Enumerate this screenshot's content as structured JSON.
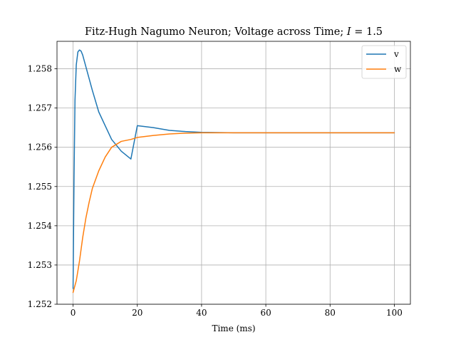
{
  "chart_data": {
    "type": "line",
    "title": "Fitz-Hugh Nagumo Neuron; Voltage across Time; ",
    "title_var": "I",
    "title_rest": " = 1.5",
    "xlabel": "Time (ms)",
    "ylabel": "",
    "xlim": [
      -5,
      105
    ],
    "ylim": [
      1.252,
      1.2587
    ],
    "xticks": [
      0,
      20,
      40,
      60,
      80,
      100
    ],
    "xtick_labels": [
      "0",
      "20",
      "40",
      "60",
      "80",
      "100"
    ],
    "yticks": [
      1.252,
      1.253,
      1.254,
      1.255,
      1.256,
      1.257,
      1.258
    ],
    "ytick_labels": [
      "1.252",
      "1.253",
      "1.254",
      "1.255",
      "1.256",
      "1.257",
      "1.258"
    ],
    "grid": true,
    "legend_position": "top-right",
    "series": [
      {
        "name": "v",
        "color": "#1f77b4",
        "x": [
          0,
          0.3,
          0.6,
          1.0,
          1.5,
          2.0,
          2.5,
          3,
          4,
          5,
          6,
          8,
          10,
          12,
          15,
          18,
          20,
          25,
          30,
          35,
          40,
          50,
          60,
          70,
          80,
          90,
          100
        ],
        "y": [
          1.2524,
          1.2552,
          1.2572,
          1.2581,
          1.25843,
          1.25848,
          1.25845,
          1.25835,
          1.25805,
          1.25775,
          1.25745,
          1.2569,
          1.25655,
          1.2562,
          1.2559,
          1.2557,
          1.25655,
          1.2565,
          1.25643,
          1.2564,
          1.25638,
          1.25637,
          1.25637,
          1.25637,
          1.25637,
          1.25637,
          1.25637
        ]
      },
      {
        "name": "w",
        "color": "#ff7f0e",
        "x": [
          0,
          1,
          2,
          3,
          4,
          5,
          6,
          8,
          10,
          12,
          15,
          18,
          20,
          25,
          30,
          35,
          40,
          50,
          60,
          70,
          80,
          90,
          100
        ],
        "y": [
          1.2523,
          1.2526,
          1.2531,
          1.2537,
          1.2542,
          1.2546,
          1.25495,
          1.2554,
          1.25575,
          1.256,
          1.25615,
          1.2562,
          1.25625,
          1.2563,
          1.25634,
          1.25636,
          1.25637,
          1.25637,
          1.25637,
          1.25637,
          1.25637,
          1.25637,
          1.25637
        ]
      }
    ]
  }
}
